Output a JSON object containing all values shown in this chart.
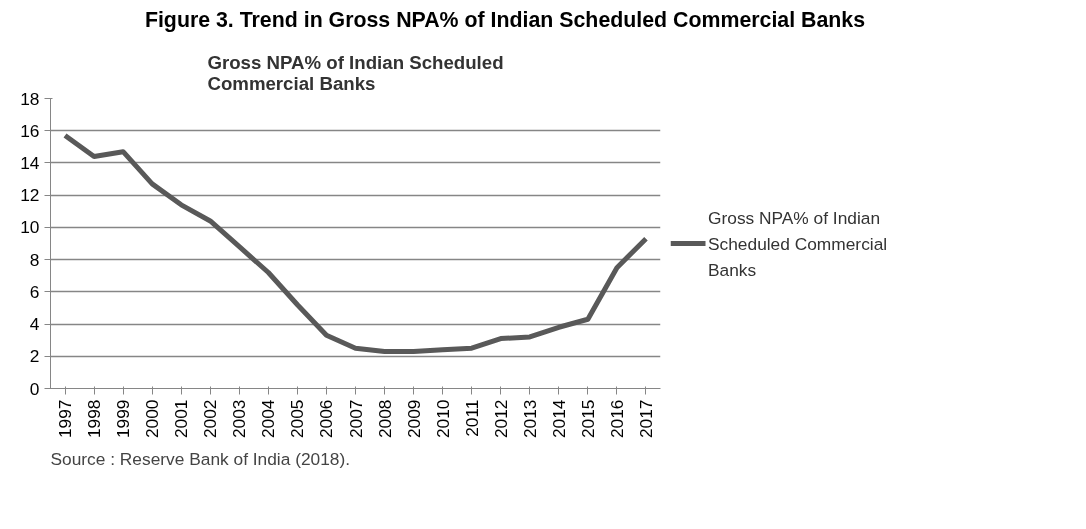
{
  "chart_data": {
    "type": "line",
    "title": "Figure 3. Trend in Gross NPA% of Indian Scheduled Commercial Banks",
    "subtitle": "Gross NPA% of Indian Scheduled Commercial Banks",
    "categories": [
      "1997",
      "1998",
      "1999",
      "2000",
      "2001",
      "2002",
      "2003",
      "2004",
      "2005",
      "2006",
      "2007",
      "2008",
      "2009",
      "2010",
      "2011",
      "2012",
      "2013",
      "2014",
      "2015",
      "2016",
      "2017"
    ],
    "series": [
      {
        "name": "Gross NPA% of Indian Scheduled Commercial Banks",
        "color": "#595959",
        "values": [
          15.7,
          14.4,
          14.7,
          12.7,
          11.4,
          10.4,
          8.8,
          7.2,
          5.2,
          3.3,
          2.5,
          2.3,
          2.3,
          2.4,
          2.5,
          3.1,
          3.2,
          3.8,
          4.3,
          7.5,
          9.3
        ]
      }
    ],
    "ylim": [
      0,
      18
    ],
    "yticks": [
      0,
      2,
      4,
      6,
      8,
      10,
      12,
      14,
      16,
      18
    ],
    "grid": "y",
    "legend": "right",
    "marker": "none",
    "line_style": "solid",
    "annotations": [
      "Source : Reserve Bank of India (2018)."
    ]
  }
}
